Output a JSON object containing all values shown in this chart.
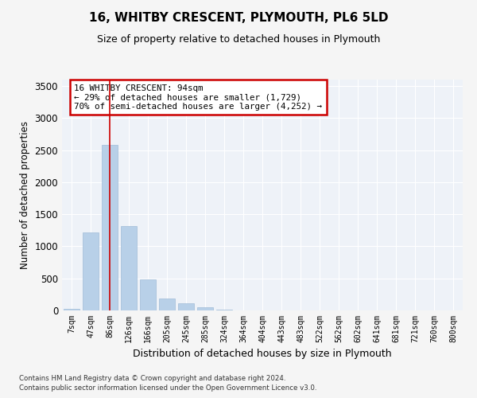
{
  "title": "16, WHITBY CRESCENT, PLYMOUTH, PL6 5LD",
  "subtitle": "Size of property relative to detached houses in Plymouth",
  "xlabel": "Distribution of detached houses by size in Plymouth",
  "ylabel": "Number of detached properties",
  "bar_color": "#b8d0e8",
  "bar_edge_color": "#a0bcd8",
  "background_color": "#eef2f8",
  "grid_color": "#ffffff",
  "fig_background": "#f5f5f5",
  "ylim": [
    0,
    3600
  ],
  "yticks": [
    0,
    500,
    1000,
    1500,
    2000,
    2500,
    3000,
    3500
  ],
  "categories": [
    "7sqm",
    "47sqm",
    "86sqm",
    "126sqm",
    "166sqm",
    "205sqm",
    "245sqm",
    "285sqm",
    "324sqm",
    "364sqm",
    "404sqm",
    "443sqm",
    "483sqm",
    "522sqm",
    "562sqm",
    "602sqm",
    "641sqm",
    "681sqm",
    "721sqm",
    "760sqm",
    "800sqm"
  ],
  "values": [
    30,
    1220,
    2580,
    1320,
    490,
    185,
    110,
    50,
    15,
    3,
    1,
    0,
    0,
    0,
    0,
    0,
    0,
    0,
    0,
    0,
    0
  ],
  "property_idx": 2,
  "annotation_line1": "16 WHITBY CRESCENT: 94sqm",
  "annotation_line2": "← 29% of detached houses are smaller (1,729)",
  "annotation_line3": "70% of semi-detached houses are larger (4,252) →",
  "red_line_color": "#cc0000",
  "annotation_box_color": "#cc0000",
  "footnote1": "Contains HM Land Registry data © Crown copyright and database right 2024.",
  "footnote2": "Contains public sector information licensed under the Open Government Licence v3.0."
}
